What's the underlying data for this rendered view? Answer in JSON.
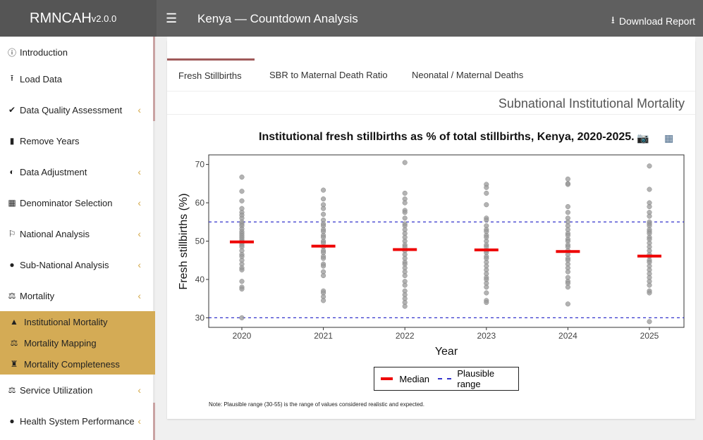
{
  "app": {
    "brand": "RMNCAH",
    "version": "v2.0.0",
    "title": "Kenya — Countdown Analysis",
    "download_label": "Download Report"
  },
  "sidebar": {
    "items": [
      {
        "label": "Introduction",
        "icon": "info-icon",
        "expandable": false
      },
      {
        "label": "Load Data",
        "icon": "upload-icon",
        "expandable": false
      },
      {
        "label": "Data Quality Assessment",
        "icon": "check-circle-icon",
        "expandable": true
      },
      {
        "label": "Remove Years",
        "icon": "trash-icon",
        "expandable": false
      },
      {
        "label": "Data Adjustment",
        "icon": "adjust-icon",
        "expandable": true
      },
      {
        "label": "Denominator Selection",
        "icon": "calculator-icon",
        "expandable": true
      },
      {
        "label": "National Analysis",
        "icon": "flag-icon",
        "expandable": true
      },
      {
        "label": "Sub-National Analysis",
        "icon": "globe-icon",
        "expandable": true
      },
      {
        "label": "Mortality",
        "icon": "scale-icon",
        "expandable": true
      },
      {
        "label": "Service Utilization",
        "icon": "scale-icon",
        "expandable": true
      },
      {
        "label": "Health System Performance",
        "icon": "globe-icon",
        "expandable": true
      }
    ],
    "submenu": [
      {
        "label": "Institutional Mortality",
        "icon": "map-icon"
      },
      {
        "label": "Mortality Mapping",
        "icon": "scale-icon"
      },
      {
        "label": "Mortality Completeness",
        "icon": "user-slash-icon"
      }
    ]
  },
  "tabs": [
    {
      "label": "Fresh Stillbirths",
      "active": true
    },
    {
      "label": "SBR to Maternal Death Ratio",
      "active": false
    },
    {
      "label": "Neonatal / Maternal Deaths",
      "active": false
    }
  ],
  "section_title": "Subnational Institutional Mortality",
  "toolbar": {
    "camera_icon": "camera-icon",
    "table_icon": "table-icon"
  },
  "chart_data": {
    "type": "scatter",
    "title": "Institutional fresh stillbirths as % of total stillbirths, Kenya, 2020-2025.",
    "xlabel": "Year",
    "ylabel": "Fresh stillbirths (%)",
    "ylim": [
      27.5,
      72.5
    ],
    "yticks": [
      30,
      40,
      50,
      60,
      70
    ],
    "categories": [
      "2020",
      "2021",
      "2022",
      "2023",
      "2024",
      "2025"
    ],
    "points": [
      [
        66.7,
        63.0,
        60.5,
        58.5,
        57.5,
        56.8,
        56.0,
        55.0,
        54.5,
        54.0,
        53.2,
        52.5,
        52.0,
        51.5,
        51.0,
        50.5,
        50.0,
        49.5,
        49.0,
        48.5,
        47.5,
        46.5,
        46.0,
        45.0,
        44.0,
        43.0,
        42.5,
        39.5,
        38.0,
        37.5,
        30.0
      ],
      [
        63.3,
        61.0,
        59.5,
        58.5,
        57.0,
        55.5,
        54.5,
        54.0,
        53.0,
        52.5,
        51.5,
        51.0,
        50.0,
        49.5,
        48.5,
        47.5,
        47.0,
        46.0,
        45.5,
        44.0,
        43.5,
        42.0,
        41.0,
        37.0,
        36.5,
        35.5,
        34.5
      ],
      [
        70.5,
        62.5,
        61.0,
        60.0,
        58.0,
        57.5,
        56.0,
        54.5,
        54.0,
        53.0,
        52.0,
        51.0,
        50.0,
        49.0,
        48.5,
        47.5,
        46.5,
        45.5,
        44.5,
        44.0,
        43.0,
        42.0,
        41.0,
        39.5,
        38.5,
        37.0,
        36.0,
        35.0,
        34.0,
        33.0
      ],
      [
        64.8,
        64.0,
        62.5,
        59.5,
        56.0,
        55.5,
        54.0,
        53.0,
        52.5,
        51.5,
        51.0,
        50.0,
        49.0,
        48.5,
        47.5,
        47.0,
        46.0,
        45.5,
        44.5,
        43.5,
        42.5,
        41.5,
        40.5,
        40.0,
        39.0,
        38.0,
        36.5,
        34.5,
        34.0
      ],
      [
        66.2,
        65.0,
        64.8,
        59.0,
        57.5,
        56.0,
        55.0,
        54.0,
        53.0,
        52.0,
        51.5,
        50.5,
        50.0,
        49.0,
        48.5,
        47.5,
        46.5,
        45.5,
        45.0,
        44.0,
        43.0,
        42.0,
        40.5,
        39.5,
        39.0,
        38.0,
        33.6
      ],
      [
        69.6,
        63.5,
        60.0,
        59.0,
        57.5,
        56.5,
        55.0,
        54.5,
        54.0,
        53.0,
        52.5,
        52.0,
        51.0,
        50.5,
        49.5,
        48.5,
        47.5,
        46.5,
        46.0,
        45.0,
        44.5,
        43.5,
        42.5,
        41.5,
        40.5,
        39.5,
        38.5,
        37.0,
        36.5,
        29.0
      ]
    ],
    "medians": [
      49.8,
      48.7,
      47.8,
      47.7,
      47.3,
      46.1
    ],
    "plausible_range": [
      30,
      55
    ],
    "grid": false,
    "colors": {
      "points": "#999999",
      "median": "#ee0000",
      "range": "#3333cc"
    },
    "legend": {
      "median_label": "Median",
      "range_label": "Plausible range",
      "placement": "bottom"
    }
  },
  "note": "Note: Plausible range (30-55) is the range of values considered realistic and expected."
}
